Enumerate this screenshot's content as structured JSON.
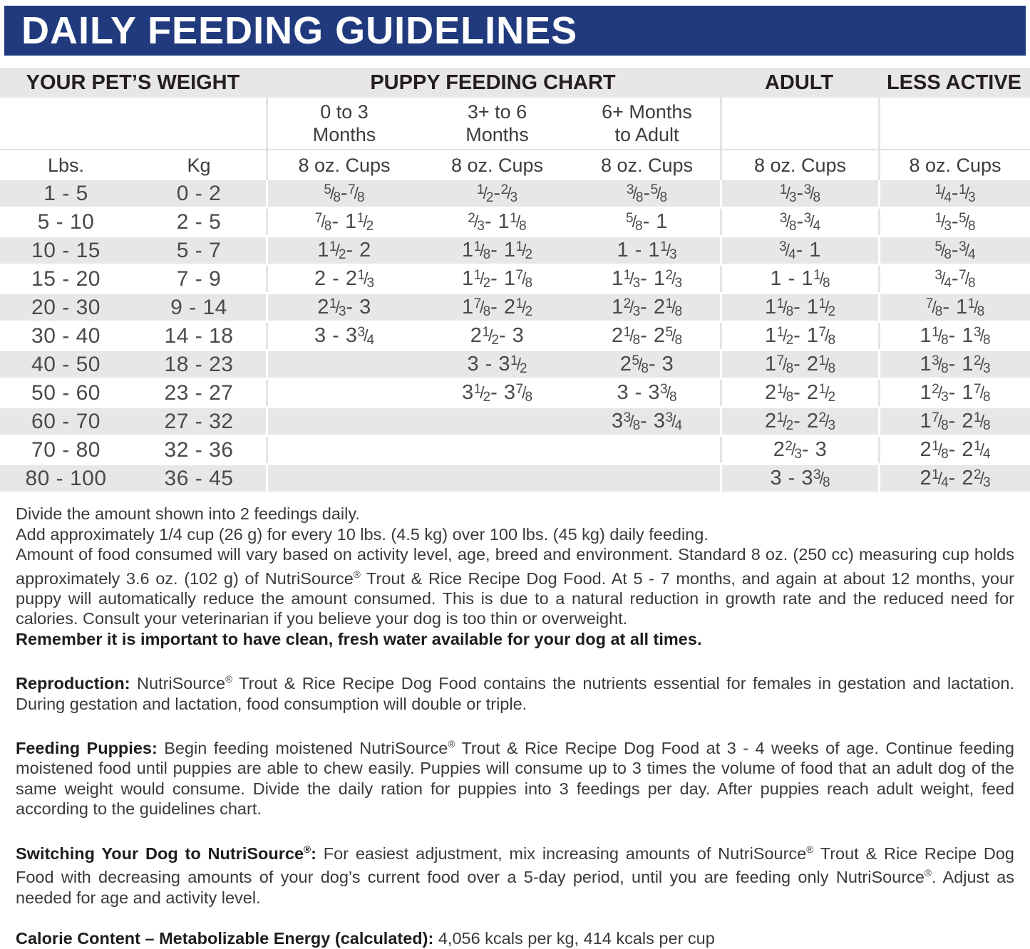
{
  "title": "DAILY FEEDING GUIDELINES",
  "colors": {
    "header_blue": "#203a7d",
    "row_gray": "#e8e7e5",
    "text_dark": "#231f20"
  },
  "table": {
    "group_headers": {
      "weight": "YOUR PET’S WEIGHT",
      "puppy": "PUPPY FEEDING CHART",
      "adult": "ADULT",
      "less_active": "LESS ACTIVE"
    },
    "age_headers": {
      "p03": "0 to 3\nMonths",
      "p36": "3+ to 6\nMonths",
      "p6a": "6+ Months\nto Adult"
    },
    "unit_headers": {
      "lbs": "Lbs.",
      "kg": "Kg",
      "cups": "8 oz. Cups"
    },
    "rows": [
      {
        "lbs": "1 - 5",
        "kg": "0 - 2",
        "p03": "5/8 - 7/8",
        "p36": "1/2 - 2/3",
        "p6a": "3/8 - 5/8",
        "adult": "1/3 - 3/8",
        "less": "1/4 - 1/3"
      },
      {
        "lbs": "5 - 10",
        "kg": "2 - 5",
        "p03": "7/8 - 1 1/2",
        "p36": "2/3 - 1 1/8",
        "p6a": "5/8 - 1",
        "adult": "3/8 - 3/4",
        "less": "1/3 - 5/8"
      },
      {
        "lbs": "10 - 15",
        "kg": "5 - 7",
        "p03": "1 1/2 - 2",
        "p36": "1 1/8 - 1 1/2",
        "p6a": "1 - 1 1/3",
        "adult": "3/4 - 1",
        "less": "5/8 - 3/4"
      },
      {
        "lbs": "15 - 20",
        "kg": "7 - 9",
        "p03": "2 - 2 1/3",
        "p36": "1 1/2 - 1 7/8",
        "p6a": "1 1/3 - 1 2/3",
        "adult": "1 - 1 1/8",
        "less": "3/4 - 7/8"
      },
      {
        "lbs": "20 - 30",
        "kg": "9 - 14",
        "p03": "2 1/3 - 3",
        "p36": "1 7/8 - 2 1/2",
        "p6a": "1 2/3 - 2 1/8",
        "adult": "1 1/8 - 1 1/2",
        "less": "7/8 - 1 1/8"
      },
      {
        "lbs": "30 - 40",
        "kg": "14 - 18",
        "p03": "3 - 3 3/4",
        "p36": "2 1/2 - 3",
        "p6a": "2 1/8 - 2 5/8",
        "adult": "1 1/2 - 1 7/8",
        "less": "1 1/8 - 1 3/8"
      },
      {
        "lbs": "40 - 50",
        "kg": "18 - 23",
        "p03": "",
        "p36": "3 - 3 1/2",
        "p6a": "2 5/8 - 3",
        "adult": "1 7/8 - 2 1/8",
        "less": "1 3/8 - 1 2/3"
      },
      {
        "lbs": "50 - 60",
        "kg": "23 - 27",
        "p03": "",
        "p36": "3 1/2 - 3 7/8",
        "p6a": "3 - 3 3/8",
        "adult": "2 1/8 - 2 1/2",
        "less": "1 2/3 - 1 7/8"
      },
      {
        "lbs": "60 - 70",
        "kg": "27 - 32",
        "p03": "",
        "p36": "",
        "p6a": "3 3/8 - 3 3/4",
        "adult": "2 1/2 - 2 2/3",
        "less": "1 7/8 - 2 1/8"
      },
      {
        "lbs": "70 - 80",
        "kg": "32 - 36",
        "p03": "",
        "p36": "",
        "p6a": "",
        "adult": "2 2/3 - 3",
        "less": "2 1/8 - 2 1/4"
      },
      {
        "lbs": "80 - 100",
        "kg": "36 - 45",
        "p03": "",
        "p36": "",
        "p6a": "",
        "adult": "3 - 3 3/8",
        "less": "2 1/4 - 2 2/3"
      }
    ]
  },
  "notes": [
    {
      "bold": false,
      "text": "Divide the amount shown into 2 feedings daily."
    },
    {
      "bold": false,
      "text": "Add approximately 1/4 cup (26 g) for every 10 lbs. (4.5 kg) over 100 lbs. (45 kg) daily feeding."
    },
    {
      "bold": false,
      "text": "Amount of food consumed will vary based on activity level, age, breed and environment. Standard 8 oz. (250 cc) measuring cup holds approximately 3.6 oz. (102 g) of NutriSource® Trout & Rice Recipe Dog Food. At 5 - 7 months, and again at about 12 months, your puppy will automatically reduce the amount consumed. This is due to a natural reduction in growth rate and the reduced need for calories. Consult your veterinarian if you believe your dog is too thin or overweight."
    },
    {
      "bold": true,
      "text": "Remember it is important to have clean, fresh water available for your dog at all times."
    }
  ],
  "sections": [
    {
      "lead": "Reproduction:",
      "text": "NutriSource® Trout & Rice Recipe Dog Food contains the nutrients essential for females in gestation and lactation. During gestation and lactation, food consumption will double or triple."
    },
    {
      "lead": "Feeding Puppies:",
      "text": "Begin feeding moistened NutriSource® Trout & Rice Recipe Dog Food at 3 - 4 weeks of age. Continue feeding moistened food until puppies are able to chew easily. Puppies will consume up to 3 times the volume of food that an adult dog of the same weight would consume. Divide the daily ration for puppies into 3 feedings per day. After puppies reach adult weight, feed according to the guidelines chart."
    },
    {
      "lead": "Switching Your Dog to NutriSource®:",
      "text": "For easiest adjustment, mix increasing amounts of NutriSource® Trout & Rice Recipe Dog Food with decreasing amounts of your dog’s current food over a 5-day period, until you are feeding only NutriSource®. Adjust as needed for age and activity level."
    },
    {
      "lead": "Calorie Content – Metabolizable Energy (calculated):",
      "text": "4,056 kcals per kg, 414 kcals per cup"
    }
  ]
}
